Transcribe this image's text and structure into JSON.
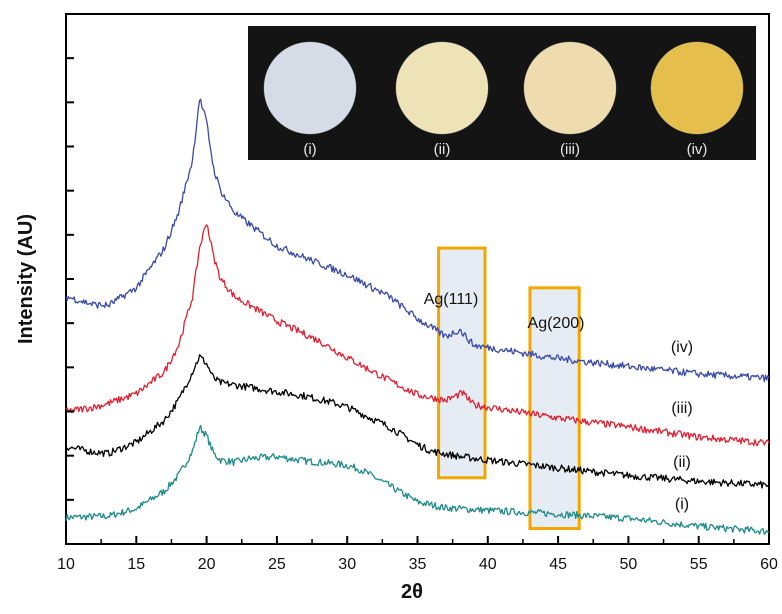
{
  "chart_data": {
    "type": "line",
    "xlabel": "2θ",
    "ylabel": "Intensity (AU)",
    "xlim": [
      10,
      60
    ],
    "xticks": [
      "10",
      "15",
      "20",
      "25",
      "30",
      "35",
      "40",
      "45",
      "50",
      "55",
      "60"
    ],
    "y_tick_labels": false,
    "grid": false,
    "series": [
      {
        "name": "(i)",
        "color": "#1f8a8a",
        "x": [
          10,
          12,
          13,
          15,
          17,
          18,
          19,
          19.5,
          20,
          20.5,
          21,
          22,
          23,
          25,
          27,
          29,
          30,
          31,
          33,
          35,
          37,
          40,
          45,
          50,
          55,
          60
        ],
        "y": [
          0.1,
          0.12,
          0.13,
          0.3,
          0.7,
          1.05,
          1.6,
          2.15,
          1.95,
          1.55,
          1.4,
          1.35,
          1.43,
          1.48,
          1.38,
          1.32,
          1.28,
          1.18,
          0.82,
          0.45,
          0.32,
          0.26,
          0.18,
          0.08,
          -0.1,
          -0.22
        ]
      },
      {
        "name": "(ii)",
        "color": "#000000",
        "x": [
          10,
          12,
          13,
          15,
          17,
          18,
          19,
          19.5,
          20,
          20.5,
          21,
          22,
          25,
          27,
          29,
          30,
          31,
          33,
          35,
          36,
          38,
          40,
          45,
          50,
          55,
          60
        ],
        "y": [
          1.7,
          1.58,
          1.55,
          1.8,
          2.3,
          2.75,
          3.4,
          3.75,
          3.58,
          3.25,
          3.15,
          3.1,
          2.95,
          2.85,
          2.7,
          2.6,
          2.45,
          2.15,
          1.75,
          1.6,
          1.48,
          1.4,
          1.22,
          1.05,
          0.92,
          0.83
        ]
      },
      {
        "name": "(iii)",
        "color": "#e02030",
        "x": [
          10,
          12,
          13,
          15,
          17,
          18,
          19,
          19.5,
          20,
          20.5,
          21,
          22,
          25,
          28,
          30,
          33,
          35,
          37,
          38.2,
          39,
          40,
          45,
          50,
          55,
          60
        ],
        "y": [
          2.5,
          2.6,
          2.68,
          2.9,
          3.4,
          4.0,
          5.1,
          6.2,
          6.8,
          6.0,
          5.5,
          5.1,
          4.55,
          4.1,
          3.72,
          3.2,
          2.88,
          2.75,
          2.92,
          2.65,
          2.6,
          2.35,
          2.15,
          1.92,
          1.78
        ]
      },
      {
        "name": "(iv)",
        "color": "#3a4aa8",
        "x": [
          10,
          12,
          13,
          15,
          17,
          18,
          19,
          19.5,
          20,
          20.5,
          21,
          22,
          25,
          28,
          30,
          33,
          35,
          37,
          38,
          39,
          40,
          45,
          50,
          55,
          60
        ],
        "y": [
          5.1,
          4.92,
          4.9,
          5.3,
          6.2,
          7.0,
          8.2,
          9.6,
          9.05,
          8.0,
          7.5,
          7.0,
          6.25,
          5.85,
          5.6,
          5.1,
          4.6,
          4.2,
          4.35,
          4.0,
          3.95,
          3.7,
          3.52,
          3.35,
          3.25
        ]
      }
    ],
    "annotations": [
      {
        "label": "Ag(111)",
        "x_range": [
          36.5,
          39.8
        ]
      },
      {
        "label": "Ag(200)",
        "x_range": [
          43.0,
          46.5
        ]
      }
    ],
    "series_labels": [
      "(iv)",
      "(iii)",
      "(ii)",
      "(i)"
    ]
  },
  "inset": {
    "labels": [
      "(i)",
      "(ii)",
      "(iii)",
      "(iv)"
    ],
    "disc_colors": [
      "#d6dce6",
      "#ede3b6",
      "#eedcae",
      "#e6be4c"
    ]
  },
  "colors": {
    "highlight_box": "#f2a600",
    "highlight_fill": "#e6ecf4",
    "inset_background": "#141414"
  }
}
